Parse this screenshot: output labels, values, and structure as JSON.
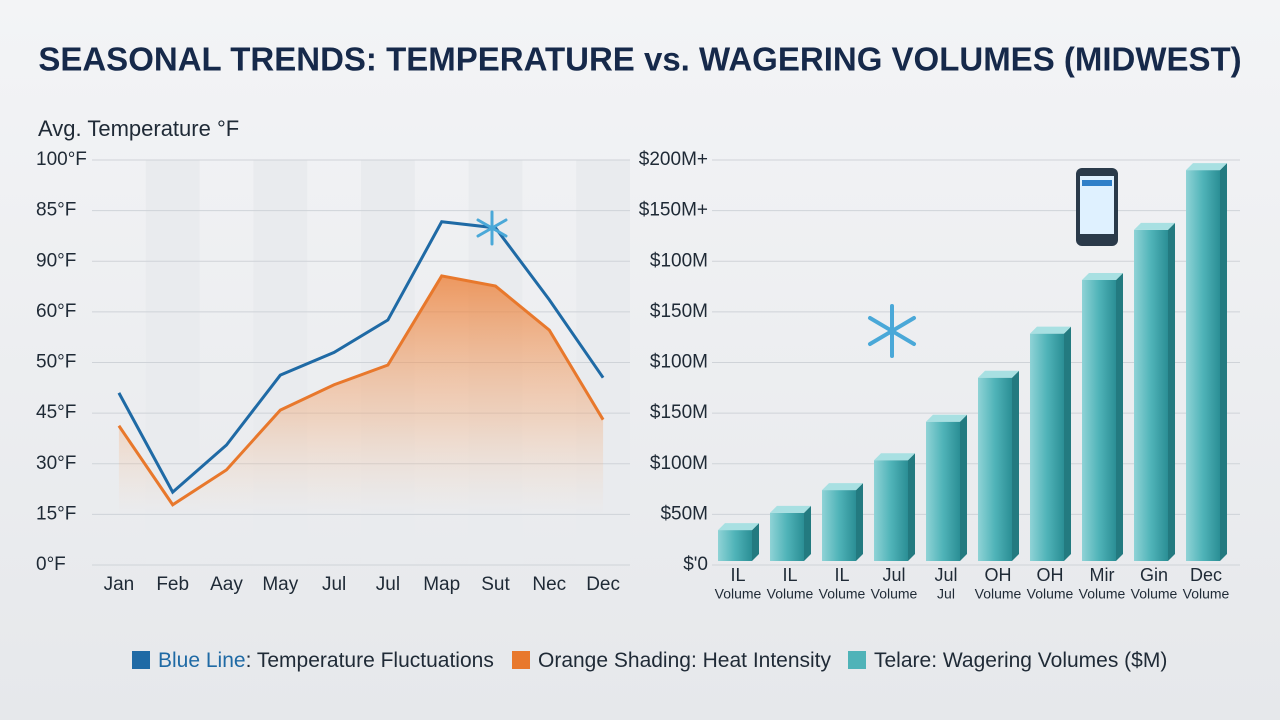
{
  "title": "SEASONAL TRENDS: TEMPERATURE vs. WAGERING VOLUMES (MIDWEST)",
  "chart_data": [
    {
      "type": "line",
      "y_axis_label": "Avg. Temperature °F",
      "categories": [
        "Jan",
        "Feb",
        "Aay",
        "May",
        "Jul",
        "Jul",
        "Map",
        "Sut",
        "Nec",
        "Dec"
      ],
      "y_levels": [
        "0°F",
        "15°F",
        "30°F",
        "45°F",
        "50°F",
        "60°F",
        "90°F",
        "85°F",
        "100°F"
      ],
      "ylim": [
        0,
        8
      ],
      "series": [
        {
          "name": "Blue Line",
          "color": "#1f6aa5",
          "values": [
            3.4,
            1.44,
            2.37,
            3.75,
            4.2,
            4.84,
            6.78,
            6.66,
            5.24,
            3.7
          ]
        },
        {
          "name": "Orange Shading",
          "color": "#e8782c",
          "fill": "area",
          "values": [
            2.75,
            1.19,
            1.88,
            3.06,
            3.56,
            3.95,
            5.71,
            5.51,
            4.64,
            2.87
          ]
        }
      ]
    },
    {
      "type": "bar",
      "categories": [
        "IL",
        "IL",
        "IL",
        "Jul",
        "Jul",
        "OH",
        "OH",
        "Mir",
        "Gin",
        "Dec"
      ],
      "sublabels": [
        "Volume",
        "Volume",
        "Volume",
        "Volume",
        "Jul",
        "Volume",
        "Volume",
        "Volume",
        "Volume",
        "Volume"
      ],
      "y_levels": [
        "$'0",
        "$50M",
        "$100M",
        "$150M",
        "$100M",
        "$150M",
        "$100M",
        "$150M+",
        "$200M+"
      ],
      "ylim": [
        0,
        8
      ],
      "color": "#3aa3aa",
      "values": [
        0.69,
        1.03,
        1.48,
        2.07,
        2.83,
        3.7,
        4.57,
        5.63,
        6.62,
        7.8
      ]
    }
  ],
  "legend": [
    {
      "key": "Blue Line",
      "text": ": Temperature Fluctuations",
      "color": "#1f6aa5"
    },
    {
      "key": "Orange Shading",
      "text": ": Heat Intensity",
      "color": "#e8782c"
    },
    {
      "key": "Telare",
      "text": ": Wagering Volumes ($M)",
      "color": "#4fb3b8"
    }
  ]
}
